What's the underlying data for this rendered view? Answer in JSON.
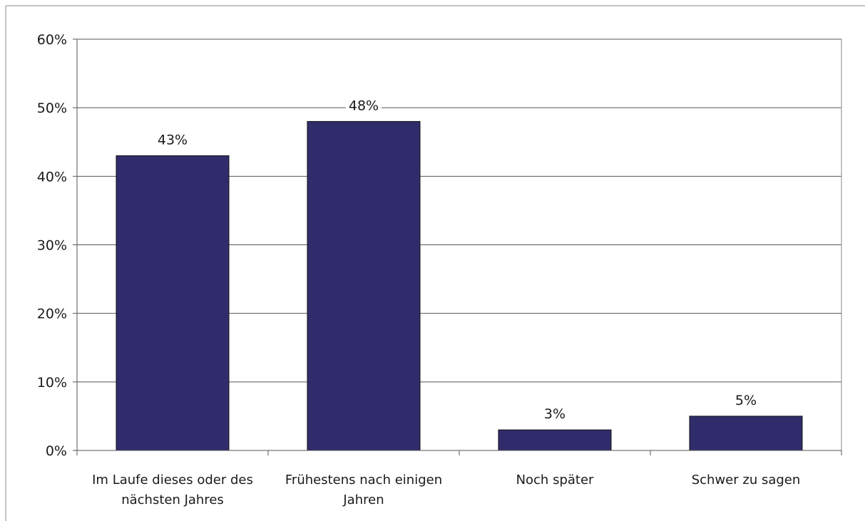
{
  "chart_data": {
    "type": "bar",
    "categories": [
      [
        "Im Laufe dieses oder des",
        "nächsten Jahres"
      ],
      [
        "Frühestens nach einigen",
        "Jahren"
      ],
      [
        "Noch später"
      ],
      [
        "Schwer zu sagen"
      ]
    ],
    "values": [
      43,
      48,
      3,
      5
    ],
    "data_labels": [
      "43%",
      "48%",
      "3%",
      "5%"
    ],
    "ylim": [
      0,
      60
    ],
    "yticks": [
      0,
      10,
      20,
      30,
      40,
      50,
      60
    ],
    "ytick_labels": [
      "0%",
      "10%",
      "20%",
      "30%",
      "40%",
      "50%",
      "60%"
    ],
    "grid": true,
    "bar_color": "#302c6c",
    "title": "",
    "xlabel": "",
    "ylabel": ""
  }
}
